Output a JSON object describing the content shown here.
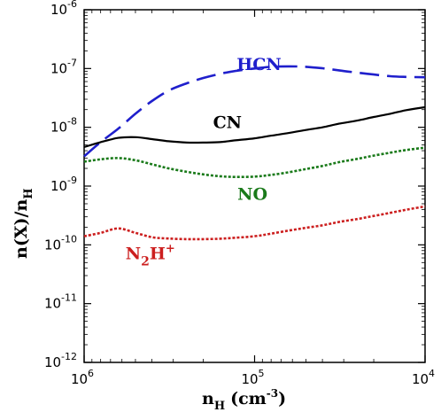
{
  "chart_data": {
    "type": "line",
    "xlabel": {
      "base": "n",
      "sub": "H",
      "units": "(cm",
      "units_exp": "-3",
      "units_close": ")"
    },
    "ylabel": {
      "base": "n(X)/n",
      "sub": "H"
    },
    "x_scale": "log",
    "x_reversed": true,
    "y_scale": "log",
    "xlim": [
      1000000,
      10000
    ],
    "ylim": [
      1e-12,
      1e-06
    ],
    "grid": false,
    "x_ticks": [
      {
        "value": 1000000,
        "base": "10",
        "exp": "6"
      },
      {
        "value": 100000,
        "base": "10",
        "exp": "5"
      },
      {
        "value": 10000,
        "base": "10",
        "exp": "4"
      }
    ],
    "y_ticks": [
      {
        "value": 1e-06,
        "base": "10",
        "exp": "-6"
      },
      {
        "value": 1e-07,
        "base": "10",
        "exp": "-7"
      },
      {
        "value": 1e-08,
        "base": "10",
        "exp": "-8"
      },
      {
        "value": 1e-09,
        "base": "10",
        "exp": "-9"
      },
      {
        "value": 1e-10,
        "base": "10",
        "exp": "-10"
      },
      {
        "value": 1e-11,
        "base": "10",
        "exp": "-11"
      },
      {
        "value": 1e-12,
        "base": "10",
        "exp": "-12"
      }
    ],
    "series": [
      {
        "name": "HCN",
        "label": {
          "text": "HCN",
          "sub": "",
          "sup": ""
        },
        "color": "#1f1fcc",
        "style": "dashed",
        "x": [
          1000000,
          800000,
          630000,
          500000,
          400000,
          320000,
          250000,
          200000,
          160000,
          130000,
          100000,
          80000,
          63000,
          50000,
          40000,
          32000,
          25000,
          20000,
          16000,
          13000,
          10000
        ],
        "y": [
          3.2e-09,
          5.6e-09,
          9.5e-09,
          1.7e-08,
          2.8e-08,
          4.2e-08,
          5.6e-08,
          6.9e-08,
          8.1e-08,
          9.1e-08,
          1e-07,
          1.07e-07,
          1.09e-07,
          1.07e-07,
          1.01e-07,
          9.3e-08,
          8.5e-08,
          7.9e-08,
          7.4e-08,
          7.2e-08,
          7.1e-08
        ]
      },
      {
        "name": "CN",
        "label": {
          "text": "CN",
          "sub": "",
          "sup": ""
        },
        "color": "#000000",
        "style": "solid",
        "x": [
          1000000,
          800000,
          630000,
          500000,
          400000,
          320000,
          250000,
          200000,
          160000,
          130000,
          100000,
          80000,
          63000,
          50000,
          40000,
          32000,
          25000,
          20000,
          16000,
          13000,
          10000
        ],
        "y": [
          4.6e-09,
          5.6e-09,
          6.6e-09,
          6.8e-09,
          6.3e-09,
          5.8e-09,
          5.5e-09,
          5.5e-09,
          5.6e-09,
          6e-09,
          6.5e-09,
          7.2e-09,
          8e-09,
          9e-09,
          1e-08,
          1.15e-08,
          1.3e-08,
          1.5e-08,
          1.7e-08,
          1.95e-08,
          2.2e-08
        ]
      },
      {
        "name": "NO",
        "label": {
          "text": "NO",
          "sub": "",
          "sup": ""
        },
        "color": "#1a7a1a",
        "style": "dotted",
        "x": [
          1000000,
          800000,
          630000,
          500000,
          400000,
          320000,
          250000,
          200000,
          160000,
          130000,
          100000,
          80000,
          63000,
          50000,
          40000,
          32000,
          25000,
          20000,
          16000,
          13000,
          10000
        ],
        "y": [
          2.6e-09,
          2.85e-09,
          3e-09,
          2.75e-09,
          2.35e-09,
          2e-09,
          1.75e-09,
          1.58e-09,
          1.47e-09,
          1.43e-09,
          1.45e-09,
          1.55e-09,
          1.72e-09,
          1.95e-09,
          2.2e-09,
          2.55e-09,
          2.9e-09,
          3.3e-09,
          3.7e-09,
          4.1e-09,
          4.5e-09
        ]
      },
      {
        "name": "N2H+",
        "label": {
          "text": "N",
          "sub": "2",
          "mid": "H",
          "sup": "+"
        },
        "color": "#cc1f1f",
        "style": "dotted",
        "x": [
          1000000,
          800000,
          630000,
          500000,
          400000,
          320000,
          250000,
          200000,
          160000,
          130000,
          100000,
          80000,
          63000,
          50000,
          40000,
          32000,
          25000,
          20000,
          16000,
          13000,
          10000
        ],
        "y": [
          1.4e-10,
          1.6e-10,
          1.9e-10,
          1.6e-10,
          1.35e-10,
          1.28e-10,
          1.25e-10,
          1.25e-10,
          1.27e-10,
          1.32e-10,
          1.4e-10,
          1.55e-10,
          1.75e-10,
          1.95e-10,
          2.15e-10,
          2.45e-10,
          2.75e-10,
          3.1e-10,
          3.5e-10,
          3.95e-10,
          4.5e-10
        ]
      }
    ]
  }
}
